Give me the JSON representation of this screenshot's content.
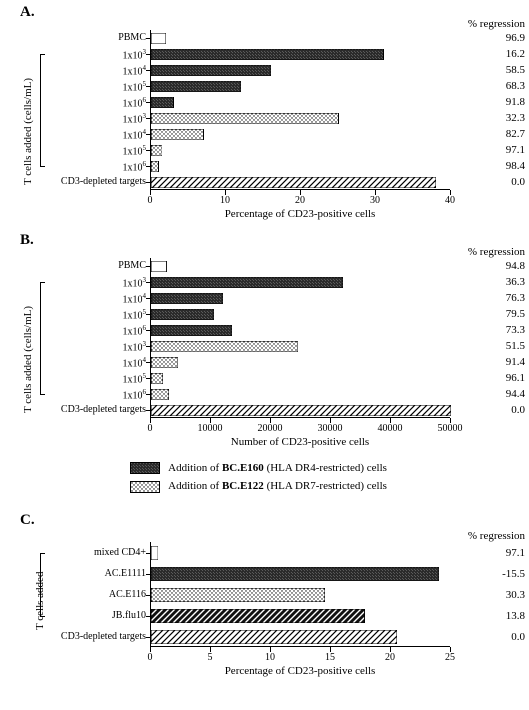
{
  "patterns": {
    "dark-dense": {
      "fill": "#3a3a3a"
    },
    "light-dots": {
      "fill": "#ffffff"
    },
    "hatch": {
      "fill": "#ffffff"
    },
    "inverse-hatch": {
      "fill": "#1a1a1a"
    },
    "white": {
      "fill": "#ffffff"
    }
  },
  "legend": {
    "line1": {
      "swatch": "dark-dense",
      "pre": "Addition of ",
      "bold": "BC.E160",
      "post": " (HLA DR4-restricted) cells"
    },
    "line2": {
      "swatch": "light-dots",
      "pre": "Addition of ",
      "bold": "BC.E122",
      "post": " (HLA DR7-restricted) cells"
    }
  },
  "panelA": {
    "label": "A.",
    "yaxis": "T cells added (cells/mL)",
    "xaxis": "Percentage of CD23-positive cells",
    "regression_header": "% regression",
    "xlim": [
      0,
      40
    ],
    "xticks": [
      0,
      10,
      20,
      30,
      40
    ],
    "rows": [
      {
        "label": "PBMC",
        "value": 2,
        "pattern": "white",
        "regression": "96.9"
      },
      {
        "label": "1x10^3",
        "value": 31,
        "pattern": "dark-dense",
        "regression": "16.2"
      },
      {
        "label": "1x10^4",
        "value": 16,
        "pattern": "dark-dense",
        "regression": "58.5"
      },
      {
        "label": "1x10^5",
        "value": 12,
        "pattern": "dark-dense",
        "regression": "68.3"
      },
      {
        "label": "1x10^6",
        "value": 3,
        "pattern": "dark-dense",
        "regression": "91.8"
      },
      {
        "label": "1x10^3",
        "value": 25,
        "pattern": "light-dots",
        "regression": "32.3"
      },
      {
        "label": "1x10^4",
        "value": 7,
        "pattern": "light-dots",
        "regression": "82.7"
      },
      {
        "label": "1x10^5",
        "value": 1.5,
        "pattern": "light-dots",
        "regression": "97.1"
      },
      {
        "label": "1x10^6",
        "value": 1,
        "pattern": "light-dots",
        "regression": "98.4"
      },
      {
        "label": "CD3-depleted targets",
        "value": 38,
        "pattern": "hatch",
        "regression": "0.0"
      }
    ]
  },
  "panelB": {
    "label": "B.",
    "yaxis": "T cells added (cells/mL)",
    "xaxis": "Number of  CD23-positive cells",
    "regression_header": "% regression",
    "xlim": [
      0,
      50000
    ],
    "xticks": [
      0,
      10000,
      20000,
      30000,
      40000,
      50000
    ],
    "rows": [
      {
        "label": "PBMC",
        "value": 2600,
        "pattern": "white",
        "regression": "94.8"
      },
      {
        "label": "1x10^3",
        "value": 32000,
        "pattern": "dark-dense",
        "regression": "36.3"
      },
      {
        "label": "1x10^4",
        "value": 12000,
        "pattern": "dark-dense",
        "regression": "76.3"
      },
      {
        "label": "1x10^5",
        "value": 10500,
        "pattern": "dark-dense",
        "regression": "79.5"
      },
      {
        "label": "1x10^6",
        "value": 13500,
        "pattern": "dark-dense",
        "regression": "73.3"
      },
      {
        "label": "1x10^3",
        "value": 24500,
        "pattern": "light-dots",
        "regression": "51.5"
      },
      {
        "label": "1x10^4",
        "value": 4500,
        "pattern": "light-dots",
        "regression": "91.4"
      },
      {
        "label": "1x10^5",
        "value": 2000,
        "pattern": "light-dots",
        "regression": "96.1"
      },
      {
        "label": "1x10^6",
        "value": 3000,
        "pattern": "light-dots",
        "regression": "94.4"
      },
      {
        "label": "CD3-depleted targets",
        "value": 50000,
        "pattern": "hatch",
        "regression": "0.0"
      }
    ]
  },
  "panelC": {
    "label": "C.",
    "yaxis": "T cells added",
    "xaxis": "Percentage of CD23-positive cells",
    "regression_header": "% regression",
    "xlim": [
      0,
      25
    ],
    "xticks": [
      0,
      5,
      10,
      15,
      20,
      25
    ],
    "rows": [
      {
        "label": "mixed CD4+",
        "value": 0.6,
        "pattern": "white",
        "regression": "97.1"
      },
      {
        "label": "AC.E1111",
        "value": 24,
        "pattern": "dark-dense",
        "regression": "-15.5"
      },
      {
        "label": "AC.E116",
        "value": 14.5,
        "pattern": "light-dots",
        "regression": "30.3"
      },
      {
        "label": "JB.flu10",
        "value": 17.8,
        "pattern": "inverse-hatch",
        "regression": "13.8"
      },
      {
        "label": "CD3-depleted targets",
        "value": 20.5,
        "pattern": "hatch",
        "regression": "0.0"
      }
    ]
  }
}
